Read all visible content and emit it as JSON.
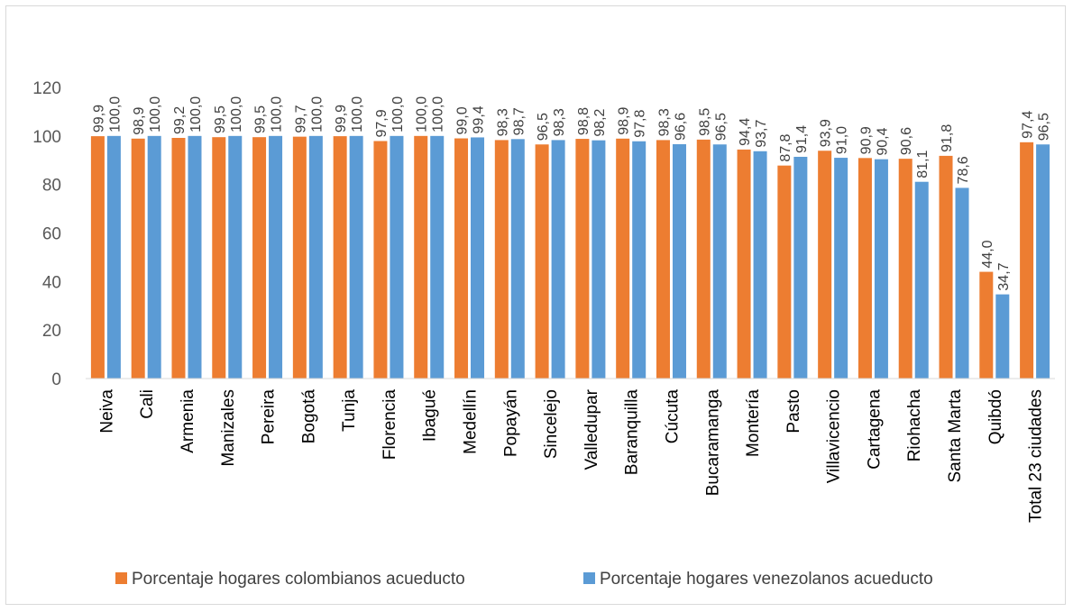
{
  "chart_data": {
    "type": "bar",
    "categories": [
      "Neiva",
      "Cali",
      "Armenia",
      "Manizales",
      "Pereira",
      "Bogotá",
      "Tunja",
      "Florencia",
      "Ibagué",
      "Medellín",
      "Popayán",
      "Sincelejo",
      "Valledupar",
      "Baranquilla",
      "Cúcuta",
      "Bucaramanga",
      "Montería",
      "Pasto",
      "Villavicencio",
      "Cartagena",
      "Riohacha",
      "Santa Marta",
      "Quibdó",
      "Total 23 ciudades"
    ],
    "series": [
      {
        "name": "Porcentaje hogares colombianos acueducto",
        "color": "#ED7D31",
        "values": [
          99.9,
          98.9,
          99.2,
          99.5,
          99.5,
          99.7,
          99.9,
          97.9,
          100.0,
          99.0,
          98.3,
          96.5,
          98.8,
          98.9,
          98.3,
          98.5,
          94.4,
          87.8,
          93.9,
          90.9,
          90.6,
          91.8,
          44.0,
          97.4
        ],
        "labels": [
          "99,9",
          "98,9",
          "99,2",
          "99,5",
          "99,5",
          "99,7",
          "99,9",
          "97,9",
          "100,0",
          "99,0",
          "98,3",
          "96,5",
          "98,8",
          "98,9",
          "98,3",
          "98,5",
          "94,4",
          "87,8",
          "93,9",
          "90,9",
          "90,6",
          "91,8",
          "44,0",
          "97,4"
        ]
      },
      {
        "name": "Porcentaje hogares venezolanos acueducto",
        "color": "#5B9BD5",
        "values": [
          100.0,
          100.0,
          100.0,
          100.0,
          100.0,
          100.0,
          100.0,
          100.0,
          100.0,
          99.4,
          98.7,
          98.3,
          98.2,
          97.8,
          96.6,
          96.5,
          93.7,
          91.4,
          91.0,
          90.4,
          81.1,
          78.6,
          34.7,
          96.5
        ],
        "labels": [
          "100,0",
          "100,0",
          "100,0",
          "100,0",
          "100,0",
          "100,0",
          "100,0",
          "100,0",
          "100,0",
          "99,4",
          "98,7",
          "98,3",
          "98,2",
          "97,8",
          "96,6",
          "96,5",
          "93,7",
          "91,4",
          "91,0",
          "90,4",
          "81,1",
          "78,6",
          "34,7",
          "96,5"
        ]
      }
    ],
    "y_ticks": [
      "0",
      "20",
      "40",
      "60",
      "80",
      "100",
      "120"
    ],
    "ylim": [
      0,
      120
    ],
    "grid": false,
    "legend_position": "bottom"
  }
}
